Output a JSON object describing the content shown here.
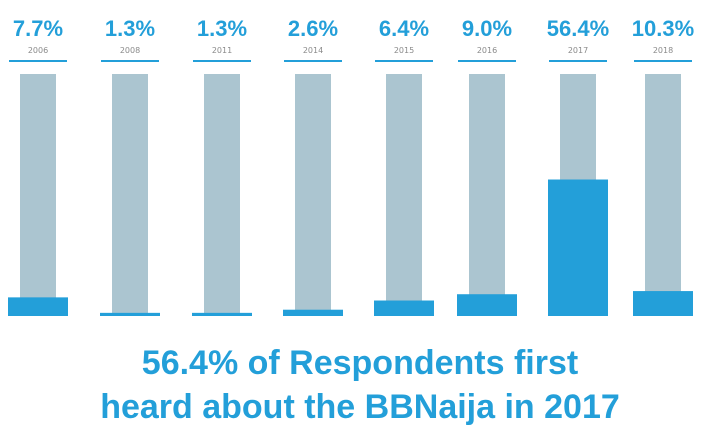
{
  "colors": {
    "accent": "#239fd9",
    "track": "#abc5d0",
    "year_text": "#8a8a8a"
  },
  "chart_data": {
    "type": "bar",
    "categories": [
      "2006",
      "2008",
      "2011",
      "2014",
      "2015",
      "2016",
      "2017",
      "2018"
    ],
    "values": [
      7.7,
      1.3,
      1.3,
      2.6,
      6.4,
      9.0,
      56.4,
      10.3
    ],
    "value_labels": [
      "7.7%",
      "1.3%",
      "1.3%",
      "2.6%",
      "6.4%",
      "9.0%",
      "56.4%",
      "10.3%"
    ],
    "ylim": [
      0,
      100
    ],
    "grid": false,
    "legend": "none"
  },
  "caption": {
    "line1": "56.4% of Respondents first",
    "line2": "heard about the BBNaija in 2017"
  }
}
